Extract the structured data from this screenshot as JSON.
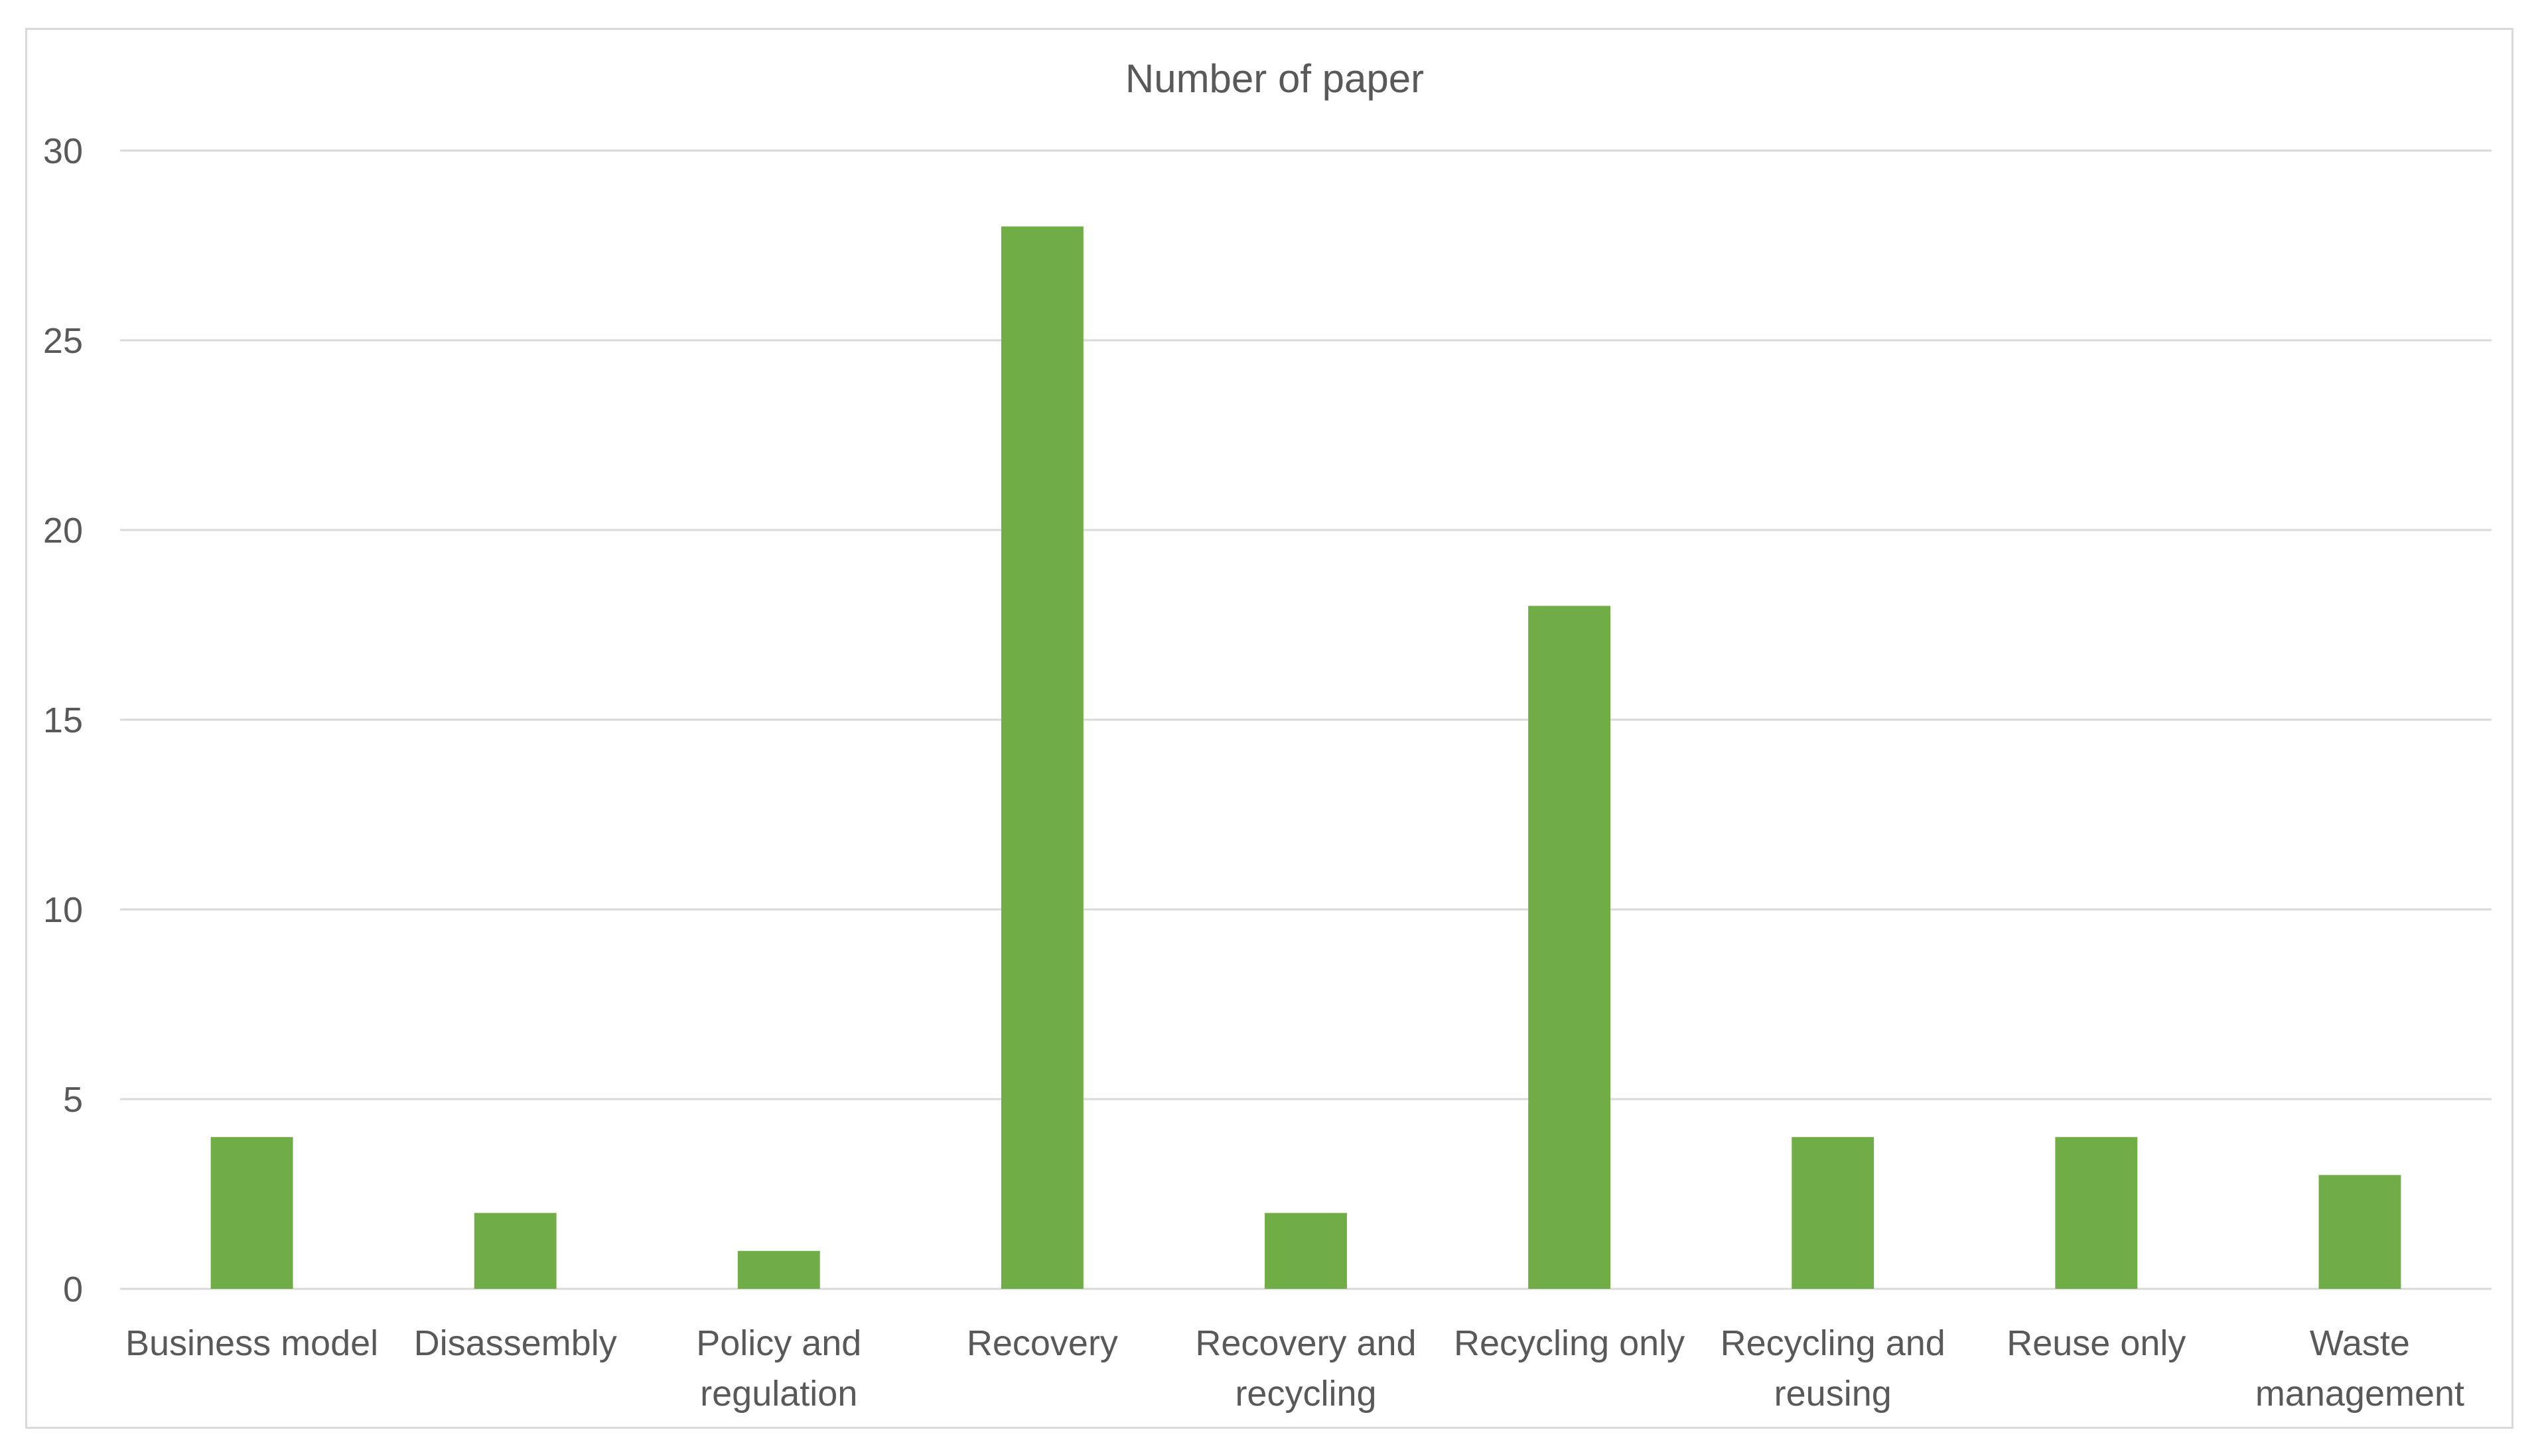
{
  "chart_data": {
    "type": "bar",
    "title": "Number of paper",
    "xlabel": "",
    "ylabel": "",
    "categories": [
      "Business model",
      "Disassembly",
      "Policy and regulation",
      "Recovery",
      "Recovery and recycling",
      "Recycling only",
      "Recycling and reusing",
      "Reuse only",
      "Waste management"
    ],
    "category_label_lines": [
      [
        "Business model"
      ],
      [
        "Disassembly"
      ],
      [
        "Policy and",
        "regulation"
      ],
      [
        "Recovery"
      ],
      [
        "Recovery and",
        "recycling"
      ],
      [
        "Recycling only"
      ],
      [
        "Recycling and",
        "reusing"
      ],
      [
        "Reuse only"
      ],
      [
        "Waste",
        "management"
      ]
    ],
    "values": [
      4,
      2,
      1,
      28,
      2,
      18,
      4,
      4,
      3
    ],
    "ylim": [
      0,
      30
    ],
    "yticks": [
      "0",
      "5",
      "10",
      "15",
      "20",
      "25",
      "30"
    ],
    "grid": true,
    "legend": "none",
    "bar_color": "#70ad47"
  }
}
